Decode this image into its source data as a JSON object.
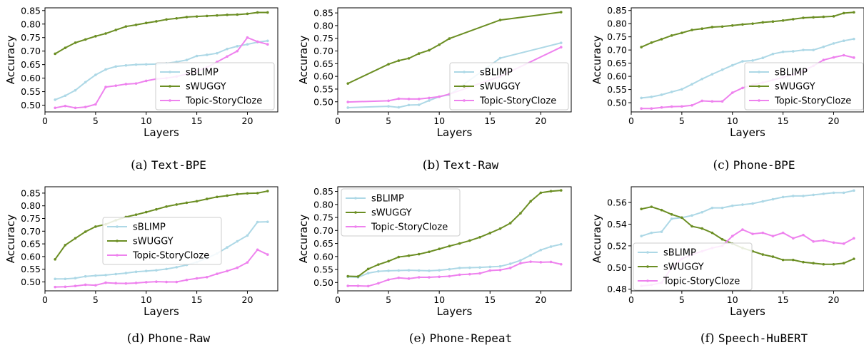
{
  "colors": {
    "sBLIMP": "#add8e6",
    "sWUGGY": "#6b8e23",
    "Topic-StoryCloze": "#ee82ee"
  },
  "chart_data": [
    {
      "type": "line",
      "caption_prefix": "(a) ",
      "caption_name": "Text-BPE",
      "xlabel": "Layers",
      "ylabel": "Accuracy",
      "xlim": [
        0,
        23
      ],
      "ylim": [
        0.475,
        0.86
      ],
      "xticks": [
        0,
        5,
        10,
        15,
        20
      ],
      "yticks": [
        0.5,
        0.55,
        0.6,
        0.65,
        0.7,
        0.75,
        0.8,
        0.85
      ],
      "legend_location": "lower right",
      "series": [
        {
          "name": "sBLIMP",
          "x": [
            1,
            2,
            3,
            4,
            5,
            6,
            7,
            8,
            9,
            10,
            11,
            12,
            13,
            14,
            15,
            16,
            17,
            18,
            19,
            20,
            21,
            22
          ],
          "y": [
            0.52,
            0.535,
            0.555,
            0.585,
            0.612,
            0.632,
            0.643,
            0.647,
            0.65,
            0.651,
            0.652,
            0.655,
            0.66,
            0.667,
            0.682,
            0.686,
            0.692,
            0.708,
            0.718,
            0.725,
            0.733,
            0.738
          ]
        },
        {
          "name": "sWUGGY",
          "x": [
            1,
            2,
            3,
            4,
            5,
            6,
            7,
            8,
            9,
            10,
            11,
            12,
            13,
            14,
            15,
            16,
            17,
            18,
            19,
            20,
            21,
            22
          ],
          "y": [
            0.69,
            0.712,
            0.731,
            0.743,
            0.755,
            0.765,
            0.778,
            0.791,
            0.797,
            0.804,
            0.81,
            0.817,
            0.821,
            0.826,
            0.828,
            0.83,
            0.832,
            0.834,
            0.835,
            0.838,
            0.843,
            0.843
          ]
        },
        {
          "name": "Topic-StoryCloze",
          "x": [
            1,
            2,
            3,
            4,
            5,
            6,
            7,
            8,
            9,
            10,
            11,
            12,
            13,
            14,
            15,
            16,
            17,
            18,
            19,
            20,
            21,
            22
          ],
          "y": [
            0.49,
            0.497,
            0.49,
            0.493,
            0.503,
            0.567,
            0.572,
            0.578,
            0.58,
            0.59,
            0.597,
            0.6,
            0.606,
            0.615,
            0.625,
            0.64,
            0.66,
            0.68,
            0.7,
            0.75,
            0.735,
            0.725
          ]
        }
      ]
    },
    {
      "type": "line",
      "caption_prefix": "(b) ",
      "caption_name": "Text-Raw",
      "xlabel": "Layers",
      "ylabel": "Accuracy",
      "xlim": [
        0,
        23
      ],
      "ylim": [
        0.46,
        0.87
      ],
      "xticks": [
        0,
        5,
        10,
        15,
        20
      ],
      "yticks": [
        0.5,
        0.55,
        0.6,
        0.65,
        0.7,
        0.75,
        0.8,
        0.85
      ],
      "legend_location": "lower right",
      "series": [
        {
          "name": "sBLIMP",
          "x": [
            1,
            5,
            6,
            7,
            8,
            9,
            10,
            11,
            16,
            22
          ],
          "y": [
            0.477,
            0.482,
            0.478,
            0.487,
            0.488,
            0.505,
            0.52,
            0.528,
            0.672,
            0.732
          ]
        },
        {
          "name": "sWUGGY",
          "x": [
            1,
            5,
            6,
            7,
            8,
            9,
            10,
            11,
            16,
            22
          ],
          "y": [
            0.572,
            0.648,
            0.662,
            0.671,
            0.69,
            0.703,
            0.725,
            0.749,
            0.822,
            0.853
          ]
        },
        {
          "name": "Topic-StoryCloze",
          "x": [
            1,
            5,
            6,
            7,
            8,
            9,
            10,
            11,
            16,
            22
          ],
          "y": [
            0.499,
            0.504,
            0.512,
            0.511,
            0.511,
            0.515,
            0.52,
            0.53,
            0.6,
            0.715
          ]
        }
      ]
    },
    {
      "type": "line",
      "caption_prefix": "(c) ",
      "caption_name": "Phone-BPE",
      "xlabel": "Layers",
      "ylabel": "Accuracy",
      "xlim": [
        0,
        23
      ],
      "ylim": [
        0.465,
        0.86
      ],
      "xticks": [
        0,
        5,
        10,
        15,
        20
      ],
      "yticks": [
        0.5,
        0.55,
        0.6,
        0.65,
        0.7,
        0.75,
        0.8,
        0.85
      ],
      "legend_location": "lower right",
      "series": [
        {
          "name": "sBLIMP",
          "x": [
            1,
            2,
            3,
            4,
            5,
            6,
            7,
            8,
            9,
            10,
            11,
            12,
            13,
            14,
            15,
            16,
            17,
            18,
            19,
            20,
            21,
            22
          ],
          "y": [
            0.518,
            0.522,
            0.53,
            0.541,
            0.551,
            0.57,
            0.59,
            0.608,
            0.625,
            0.642,
            0.657,
            0.66,
            0.67,
            0.685,
            0.693,
            0.695,
            0.7,
            0.7,
            0.712,
            0.725,
            0.735,
            0.742
          ]
        },
        {
          "name": "sWUGGY",
          "x": [
            1,
            2,
            3,
            4,
            5,
            6,
            7,
            8,
            9,
            10,
            11,
            12,
            13,
            14,
            15,
            16,
            17,
            18,
            19,
            20,
            21,
            22
          ],
          "y": [
            0.711,
            0.728,
            0.741,
            0.755,
            0.765,
            0.776,
            0.781,
            0.787,
            0.789,
            0.793,
            0.797,
            0.8,
            0.805,
            0.808,
            0.812,
            0.817,
            0.822,
            0.824,
            0.826,
            0.828,
            0.84,
            0.843
          ]
        },
        {
          "name": "Topic-StoryCloze",
          "x": [
            1,
            2,
            3,
            4,
            5,
            6,
            7,
            8,
            9,
            10,
            11,
            12,
            13,
            14,
            15,
            16,
            17,
            18,
            19,
            20,
            21,
            22
          ],
          "y": [
            0.478,
            0.478,
            0.482,
            0.485,
            0.486,
            0.49,
            0.507,
            0.505,
            0.505,
            0.538,
            0.556,
            0.568,
            0.576,
            0.586,
            0.596,
            0.607,
            0.62,
            0.64,
            0.662,
            0.672,
            0.68,
            0.671
          ]
        }
      ]
    },
    {
      "type": "line",
      "caption_prefix": "(d) ",
      "caption_name": "Phone-Raw",
      "xlabel": "Layers",
      "ylabel": "Accuracy",
      "xlim": [
        0,
        23
      ],
      "ylim": [
        0.465,
        0.875
      ],
      "xticks": [
        0,
        5,
        10,
        15,
        20
      ],
      "yticks": [
        0.5,
        0.55,
        0.6,
        0.65,
        0.7,
        0.75,
        0.8,
        0.85
      ],
      "legend_location": "center left",
      "series": [
        {
          "name": "sBLIMP",
          "x": [
            1,
            2,
            3,
            4,
            5,
            6,
            7,
            8,
            9,
            10,
            11,
            12,
            13,
            14,
            15,
            16,
            17,
            18,
            19,
            20,
            21,
            22
          ],
          "y": [
            0.512,
            0.512,
            0.515,
            0.522,
            0.525,
            0.527,
            0.531,
            0.535,
            0.54,
            0.543,
            0.546,
            0.551,
            0.558,
            0.567,
            0.578,
            0.594,
            0.612,
            0.636,
            0.66,
            0.683,
            0.736,
            0.737
          ]
        },
        {
          "name": "sWUGGY",
          "x": [
            1,
            2,
            3,
            4,
            5,
            6,
            7,
            8,
            9,
            10,
            11,
            12,
            13,
            14,
            15,
            16,
            17,
            18,
            19,
            20,
            21,
            22
          ],
          "y": [
            0.589,
            0.645,
            0.672,
            0.698,
            0.718,
            0.727,
            0.743,
            0.756,
            0.765,
            0.775,
            0.786,
            0.797,
            0.805,
            0.812,
            0.818,
            0.827,
            0.835,
            0.84,
            0.846,
            0.849,
            0.85,
            0.858
          ]
        },
        {
          "name": "Topic-StoryCloze",
          "x": [
            1,
            2,
            3,
            4,
            5,
            6,
            7,
            8,
            9,
            10,
            11,
            12,
            13,
            14,
            15,
            16,
            17,
            18,
            19,
            20,
            21,
            22
          ],
          "y": [
            0.48,
            0.481,
            0.484,
            0.489,
            0.487,
            0.497,
            0.495,
            0.494,
            0.496,
            0.499,
            0.501,
            0.5,
            0.5,
            0.508,
            0.514,
            0.519,
            0.532,
            0.543,
            0.556,
            0.577,
            0.627,
            0.608
          ]
        }
      ]
    },
    {
      "type": "line",
      "caption_prefix": "(e) ",
      "caption_name": "Phone-Repeat",
      "xlabel": "Layers",
      "ylabel": "Accuracy",
      "xlim": [
        0,
        23
      ],
      "ylim": [
        0.468,
        0.868
      ],
      "xticks": [
        0,
        5,
        10,
        15,
        20
      ],
      "yticks": [
        0.5,
        0.55,
        0.6,
        0.65,
        0.7,
        0.75,
        0.8,
        0.85
      ],
      "legend_location": "upper left",
      "series": [
        {
          "name": "sBLIMP",
          "x": [
            1,
            2,
            3,
            4,
            5,
            6,
            7,
            8,
            9,
            10,
            11,
            12,
            13,
            14,
            15,
            16,
            17,
            18,
            19,
            20,
            21,
            22
          ],
          "y": [
            0.522,
            0.52,
            0.536,
            0.543,
            0.545,
            0.546,
            0.547,
            0.546,
            0.545,
            0.547,
            0.551,
            0.556,
            0.557,
            0.558,
            0.56,
            0.562,
            0.572,
            0.585,
            0.605,
            0.625,
            0.638,
            0.647
          ]
        },
        {
          "name": "sWUGGY",
          "x": [
            1,
            2,
            3,
            4,
            5,
            6,
            7,
            8,
            9,
            10,
            11,
            12,
            13,
            14,
            15,
            16,
            17,
            18,
            19,
            20,
            21,
            22
          ],
          "y": [
            0.524,
            0.523,
            0.552,
            0.569,
            0.582,
            0.598,
            0.603,
            0.609,
            0.618,
            0.629,
            0.64,
            0.65,
            0.661,
            0.674,
            0.69,
            0.707,
            0.728,
            0.766,
            0.812,
            0.845,
            0.851,
            0.854
          ]
        },
        {
          "name": "Topic-StoryCloze",
          "x": [
            1,
            2,
            3,
            4,
            5,
            6,
            7,
            8,
            9,
            10,
            11,
            12,
            13,
            14,
            15,
            16,
            17,
            18,
            19,
            20,
            21,
            22
          ],
          "y": [
            0.487,
            0.487,
            0.486,
            0.497,
            0.511,
            0.518,
            0.515,
            0.52,
            0.52,
            0.522,
            0.524,
            0.53,
            0.532,
            0.535,
            0.546,
            0.548,
            0.556,
            0.574,
            0.58,
            0.578,
            0.579,
            0.57
          ]
        }
      ]
    },
    {
      "type": "line",
      "caption_prefix": "(f) ",
      "caption_name": "Speech-HuBERT",
      "xlabel": "Layers",
      "ylabel": "Accuracy",
      "xlim": [
        0,
        23
      ],
      "ylim": [
        0.4785,
        0.5745
      ],
      "xticks": [
        0,
        5,
        10,
        15,
        20
      ],
      "yticks": [
        0.48,
        0.5,
        0.52,
        0.54,
        0.56
      ],
      "legend_location": "lower left",
      "series": [
        {
          "name": "sBLIMP",
          "x": [
            1,
            2,
            3,
            4,
            5,
            6,
            7,
            8,
            9,
            10,
            11,
            12,
            13,
            14,
            15,
            16,
            17,
            18,
            19,
            20,
            21,
            22
          ],
          "y": [
            0.529,
            0.532,
            0.533,
            0.545,
            0.546,
            0.548,
            0.551,
            0.555,
            0.555,
            0.557,
            0.558,
            0.559,
            0.561,
            0.563,
            0.565,
            0.566,
            0.566,
            0.567,
            0.568,
            0.569,
            0.569,
            0.571
          ]
        },
        {
          "name": "sWUGGY",
          "x": [
            1,
            2,
            3,
            4,
            5,
            6,
            7,
            8,
            9,
            10,
            11,
            12,
            13,
            14,
            15,
            16,
            17,
            18,
            19,
            20,
            21,
            22
          ],
          "y": [
            0.554,
            0.556,
            0.553,
            0.549,
            0.546,
            0.538,
            0.536,
            0.532,
            0.526,
            0.522,
            0.518,
            0.515,
            0.512,
            0.51,
            0.507,
            0.507,
            0.505,
            0.504,
            0.503,
            0.503,
            0.504,
            0.508
          ]
        },
        {
          "name": "Topic-StoryCloze",
          "x": [
            1,
            2,
            3,
            4,
            5,
            6,
            7,
            8,
            9,
            10,
            11,
            12,
            13,
            14,
            15,
            16,
            17,
            18,
            19,
            20,
            21,
            22
          ],
          "y": [
            0.483,
            0.484,
            0.486,
            0.5,
            0.508,
            0.512,
            0.515,
            0.518,
            0.52,
            0.529,
            0.535,
            0.531,
            0.532,
            0.529,
            0.532,
            0.527,
            0.53,
            0.524,
            0.525,
            0.523,
            0.522,
            0.527
          ]
        }
      ]
    }
  ]
}
